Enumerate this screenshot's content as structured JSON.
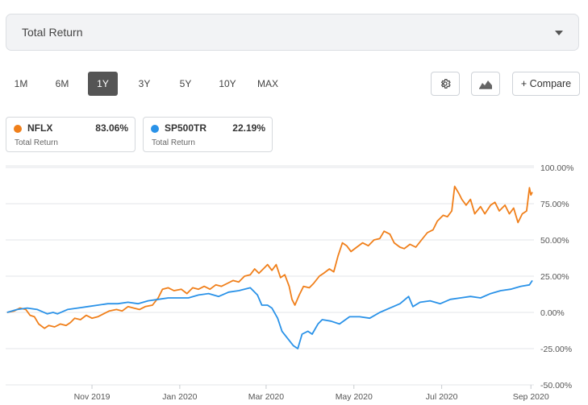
{
  "metric_selector": {
    "label": "Total Return"
  },
  "periods": [
    "1M",
    "6M",
    "1Y",
    "3Y",
    "5Y",
    "10Y",
    "MAX"
  ],
  "active_period": "1Y",
  "toolbar": {
    "settings_icon": "gear-icon",
    "chart_type_icon": "mountain-chart-icon",
    "compare_label": "+ Compare"
  },
  "legend": [
    {
      "symbol": "NFLX",
      "value": "83.06%",
      "sub": "Total Return",
      "color": "#f07f1a"
    },
    {
      "symbol": "SP500TR",
      "value": "22.19%",
      "sub": "Total Return",
      "color": "#2a92e8"
    }
  ],
  "chart_data": {
    "type": "line",
    "title": "",
    "xlabel": "",
    "ylabel": "",
    "x_range": [
      "2019-09-02",
      "2020-09-02"
    ],
    "ylim": [
      -50,
      100
    ],
    "y_ticks": [
      {
        "value": 100,
        "label": "100.00%"
      },
      {
        "value": 75,
        "label": "75.00%"
      },
      {
        "value": 50,
        "label": "50.00%"
      },
      {
        "value": 25,
        "label": "25.00%"
      },
      {
        "value": 0,
        "label": "0.00%"
      },
      {
        "value": -25,
        "label": "-25.00%"
      },
      {
        "value": -50,
        "label": "-50.00%"
      }
    ],
    "x_ticks": [
      {
        "date": "2019-11-01",
        "label": "Nov 2019"
      },
      {
        "date": "2020-01-01",
        "label": "Jan 2020"
      },
      {
        "date": "2020-03-01",
        "label": "Mar 2020"
      },
      {
        "date": "2020-05-01",
        "label": "May 2020"
      },
      {
        "date": "2020-07-01",
        "label": "Jul 2020"
      },
      {
        "date": "2020-09-01",
        "label": "Sep 2020"
      }
    ],
    "grid": true,
    "series": [
      {
        "name": "NFLX",
        "color": "#f07f1a",
        "points": [
          [
            "2019-09-03",
            0
          ],
          [
            "2019-09-08",
            1
          ],
          [
            "2019-09-12",
            3
          ],
          [
            "2019-09-16",
            2
          ],
          [
            "2019-09-19",
            -2
          ],
          [
            "2019-09-22",
            -3
          ],
          [
            "2019-09-25",
            -8
          ],
          [
            "2019-09-29",
            -11
          ],
          [
            "2019-10-02",
            -9
          ],
          [
            "2019-10-06",
            -10
          ],
          [
            "2019-10-10",
            -8
          ],
          [
            "2019-10-14",
            -9
          ],
          [
            "2019-10-17",
            -7
          ],
          [
            "2019-10-20",
            -4
          ],
          [
            "2019-10-24",
            -5
          ],
          [
            "2019-10-28",
            -2
          ],
          [
            "2019-11-01",
            -4
          ],
          [
            "2019-11-05",
            -3
          ],
          [
            "2019-11-09",
            -1
          ],
          [
            "2019-11-13",
            1
          ],
          [
            "2019-11-18",
            2
          ],
          [
            "2019-11-22",
            1
          ],
          [
            "2019-11-26",
            4
          ],
          [
            "2019-11-30",
            3
          ],
          [
            "2019-12-04",
            2
          ],
          [
            "2019-12-08",
            4
          ],
          [
            "2019-12-13",
            5
          ],
          [
            "2019-12-17",
            10
          ],
          [
            "2019-12-20",
            16
          ],
          [
            "2019-12-24",
            17
          ],
          [
            "2019-12-28",
            15
          ],
          [
            "2020-01-02",
            16
          ],
          [
            "2020-01-06",
            13
          ],
          [
            "2020-01-10",
            17
          ],
          [
            "2020-01-14",
            16
          ],
          [
            "2020-01-18",
            18
          ],
          [
            "2020-01-22",
            16
          ],
          [
            "2020-01-26",
            19
          ],
          [
            "2020-01-30",
            18
          ],
          [
            "2020-02-03",
            20
          ],
          [
            "2020-02-07",
            22
          ],
          [
            "2020-02-11",
            21
          ],
          [
            "2020-02-15",
            25
          ],
          [
            "2020-02-19",
            26
          ],
          [
            "2020-02-22",
            30
          ],
          [
            "2020-02-25",
            27
          ],
          [
            "2020-02-28",
            30
          ],
          [
            "2020-03-02",
            33
          ],
          [
            "2020-03-05",
            29
          ],
          [
            "2020-03-08",
            33
          ],
          [
            "2020-03-11",
            24
          ],
          [
            "2020-03-14",
            26
          ],
          [
            "2020-03-17",
            18
          ],
          [
            "2020-03-19",
            9
          ],
          [
            "2020-03-21",
            5
          ],
          [
            "2020-03-24",
            12
          ],
          [
            "2020-03-27",
            18
          ],
          [
            "2020-03-31",
            17
          ],
          [
            "2020-04-03",
            20
          ],
          [
            "2020-04-07",
            25
          ],
          [
            "2020-04-10",
            27
          ],
          [
            "2020-04-14",
            30
          ],
          [
            "2020-04-17",
            28
          ],
          [
            "2020-04-20",
            39
          ],
          [
            "2020-04-23",
            48
          ],
          [
            "2020-04-26",
            46
          ],
          [
            "2020-04-29",
            42
          ],
          [
            "2020-05-03",
            45
          ],
          [
            "2020-05-07",
            48
          ],
          [
            "2020-05-11",
            46
          ],
          [
            "2020-05-15",
            50
          ],
          [
            "2020-05-19",
            51
          ],
          [
            "2020-05-22",
            56
          ],
          [
            "2020-05-26",
            54
          ],
          [
            "2020-05-29",
            48
          ],
          [
            "2020-06-02",
            45
          ],
          [
            "2020-06-05",
            44
          ],
          [
            "2020-06-09",
            47
          ],
          [
            "2020-06-13",
            45
          ],
          [
            "2020-06-17",
            50
          ],
          [
            "2020-06-21",
            55
          ],
          [
            "2020-06-25",
            57
          ],
          [
            "2020-06-28",
            63
          ],
          [
            "2020-07-02",
            67
          ],
          [
            "2020-07-05",
            66
          ],
          [
            "2020-07-08",
            70
          ],
          [
            "2020-07-10",
            87
          ],
          [
            "2020-07-13",
            82
          ],
          [
            "2020-07-15",
            78
          ],
          [
            "2020-07-18",
            74
          ],
          [
            "2020-07-21",
            78
          ],
          [
            "2020-07-24",
            68
          ],
          [
            "2020-07-28",
            73
          ],
          [
            "2020-07-31",
            68
          ],
          [
            "2020-08-04",
            74
          ],
          [
            "2020-08-07",
            76
          ],
          [
            "2020-08-10",
            70
          ],
          [
            "2020-08-14",
            74
          ],
          [
            "2020-08-17",
            68
          ],
          [
            "2020-08-20",
            72
          ],
          [
            "2020-08-23",
            62
          ],
          [
            "2020-08-26",
            68
          ],
          [
            "2020-08-29",
            70
          ],
          [
            "2020-08-31",
            86
          ],
          [
            "2020-09-01",
            81
          ],
          [
            "2020-09-02",
            83
          ]
        ]
      },
      {
        "name": "SP500TR",
        "color": "#2a92e8",
        "points": [
          [
            "2019-09-03",
            0
          ],
          [
            "2019-09-10",
            2
          ],
          [
            "2019-09-17",
            3
          ],
          [
            "2019-09-24",
            2
          ],
          [
            "2019-10-01",
            -1
          ],
          [
            "2019-10-05",
            0
          ],
          [
            "2019-10-08",
            -1
          ],
          [
            "2019-10-15",
            2
          ],
          [
            "2019-10-22",
            3
          ],
          [
            "2019-10-29",
            4
          ],
          [
            "2019-11-05",
            5
          ],
          [
            "2019-11-12",
            6
          ],
          [
            "2019-11-19",
            6
          ],
          [
            "2019-11-26",
            7
          ],
          [
            "2019-12-03",
            6
          ],
          [
            "2019-12-10",
            8
          ],
          [
            "2019-12-17",
            9
          ],
          [
            "2019-12-24",
            10
          ],
          [
            "2019-12-31",
            10
          ],
          [
            "2020-01-07",
            10
          ],
          [
            "2020-01-14",
            12
          ],
          [
            "2020-01-21",
            13
          ],
          [
            "2020-01-28",
            11
          ],
          [
            "2020-02-04",
            14
          ],
          [
            "2020-02-11",
            15
          ],
          [
            "2020-02-19",
            17
          ],
          [
            "2020-02-24",
            12
          ],
          [
            "2020-02-27",
            5
          ],
          [
            "2020-03-02",
            5
          ],
          [
            "2020-03-05",
            3
          ],
          [
            "2020-03-09",
            -4
          ],
          [
            "2020-03-12",
            -13
          ],
          [
            "2020-03-16",
            -18
          ],
          [
            "2020-03-20",
            -23
          ],
          [
            "2020-03-23",
            -25
          ],
          [
            "2020-03-26",
            -15
          ],
          [
            "2020-03-30",
            -13
          ],
          [
            "2020-04-02",
            -15
          ],
          [
            "2020-04-06",
            -8
          ],
          [
            "2020-04-09",
            -5
          ],
          [
            "2020-04-15",
            -6
          ],
          [
            "2020-04-21",
            -8
          ],
          [
            "2020-04-28",
            -3
          ],
          [
            "2020-05-05",
            -3
          ],
          [
            "2020-05-12",
            -4
          ],
          [
            "2020-05-19",
            0
          ],
          [
            "2020-05-26",
            3
          ],
          [
            "2020-06-02",
            6
          ],
          [
            "2020-06-08",
            11
          ],
          [
            "2020-06-11",
            4
          ],
          [
            "2020-06-16",
            7
          ],
          [
            "2020-06-23",
            8
          ],
          [
            "2020-06-30",
            6
          ],
          [
            "2020-07-07",
            9
          ],
          [
            "2020-07-14",
            10
          ],
          [
            "2020-07-21",
            11
          ],
          [
            "2020-07-28",
            10
          ],
          [
            "2020-08-04",
            13
          ],
          [
            "2020-08-11",
            15
          ],
          [
            "2020-08-18",
            16
          ],
          [
            "2020-08-25",
            18
          ],
          [
            "2020-08-31",
            19
          ],
          [
            "2020-09-02",
            22
          ]
        ]
      }
    ]
  }
}
